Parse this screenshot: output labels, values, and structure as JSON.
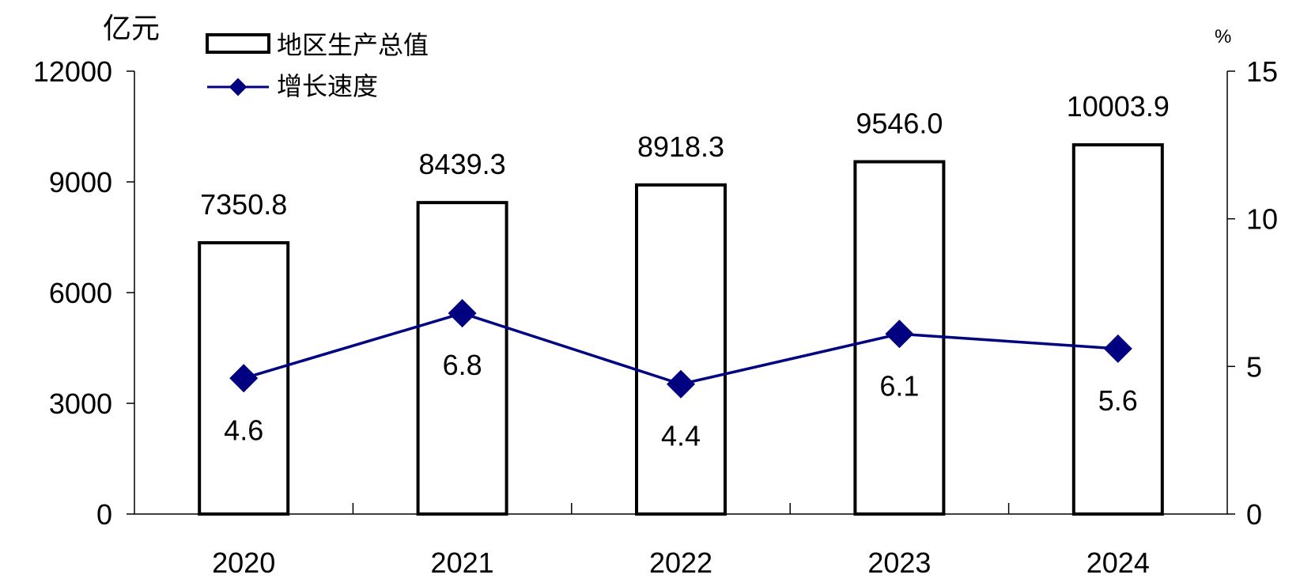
{
  "chart_data": {
    "type": "bar",
    "categories": [
      "2020",
      "2021",
      "2022",
      "2023",
      "2024"
    ],
    "series": [
      {
        "name": "地区生产总值",
        "type": "bar",
        "axis": "left",
        "values": [
          7350.8,
          8439.3,
          8918.3,
          9546.0,
          10003.9
        ],
        "labels": [
          "7350.8",
          "8439.3",
          "8918.3",
          "9546.0",
          "10003.9"
        ]
      },
      {
        "name": "增长速度",
        "type": "line",
        "axis": "right",
        "values": [
          4.6,
          6.8,
          4.4,
          6.1,
          5.6
        ],
        "labels": [
          "4.6",
          "6.8",
          "4.4",
          "6.1",
          "5.6"
        ]
      }
    ],
    "y_left": {
      "unit": "亿元",
      "ylim": [
        0,
        12000
      ],
      "ticks": [
        "0",
        "3000",
        "6000",
        "9000",
        "12000"
      ]
    },
    "y_right": {
      "unit": "%",
      "ylim": [
        0,
        15
      ],
      "ticks": [
        "0",
        "5",
        "10",
        "15"
      ]
    },
    "grid": false,
    "legend": "top-left",
    "colors": {
      "bar_fill": "#ffffff",
      "bar_stroke": "#000000",
      "line": "#000080",
      "marker": "#000080",
      "axis": "#000000"
    }
  }
}
